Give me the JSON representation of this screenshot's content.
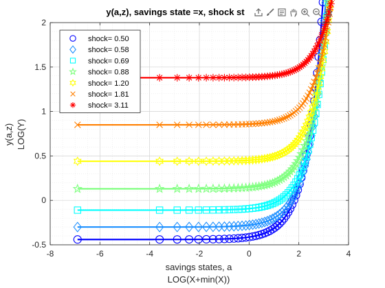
{
  "chart_data": {
    "type": "scatter",
    "title": "y(a,z), savings state =x, shock st",
    "xlabel": [
      "savings states, a",
      "LOG(X+min(X))"
    ],
    "ylabel": [
      "y(a,z)",
      "LOG(Y)"
    ],
    "xlim": [
      -8,
      4
    ],
    "ylim": [
      -0.5,
      2
    ],
    "xticks": [
      -8,
      -6,
      -4,
      -2,
      0,
      2,
      4
    ],
    "xtick_labels": [
      "-8",
      "-6",
      "-4",
      "-2",
      "0",
      "2",
      "4"
    ],
    "yticks": [
      -0.5,
      0,
      0.5,
      1,
      1.5,
      2
    ],
    "ytick_labels": [
      "-0.5",
      "0",
      "0.5",
      "1",
      "1.5",
      "2"
    ],
    "grid": true,
    "minor_grid": true,
    "legend_location": "top-left",
    "series": [
      {
        "name": "shock=  0.50",
        "marker": "circle",
        "color": "#0000ff",
        "base": -0.44,
        "a": 0.0268
      },
      {
        "name": "shock=  0.58",
        "marker": "diamond",
        "color": "#1e90ff",
        "base": -0.3,
        "a": 0.0214
      },
      {
        "name": "shock=  0.69",
        "marker": "square",
        "color": "#00ffff",
        "base": -0.11,
        "a": 0.017
      },
      {
        "name": "shock=  0.88",
        "marker": "pentagram",
        "color": "#7fff7f",
        "base": 0.13,
        "a": 0.0151
      },
      {
        "name": "shock=  1.20",
        "marker": "hexagram",
        "color": "#ffff00",
        "base": 0.44,
        "a": 0.0114
      },
      {
        "name": "shock=  1.81",
        "marker": "x",
        "color": "#ff7f00",
        "base": 0.85,
        "a": 0.0083
      },
      {
        "name": "shock=  3.11",
        "marker": "asterisk",
        "color": "#ff0000",
        "base": 1.38,
        "a": 0.0051
      }
    ],
    "curve_shape": {
      "b": 1.55,
      "x_start": -6.9,
      "x_end": 3.9
    }
  },
  "toolbar": {
    "icons": [
      "export-icon",
      "brush-icon",
      "data-tips-icon",
      "pan-icon",
      "zoom-in-icon",
      "zoom-out-icon",
      "home-icon"
    ]
  }
}
